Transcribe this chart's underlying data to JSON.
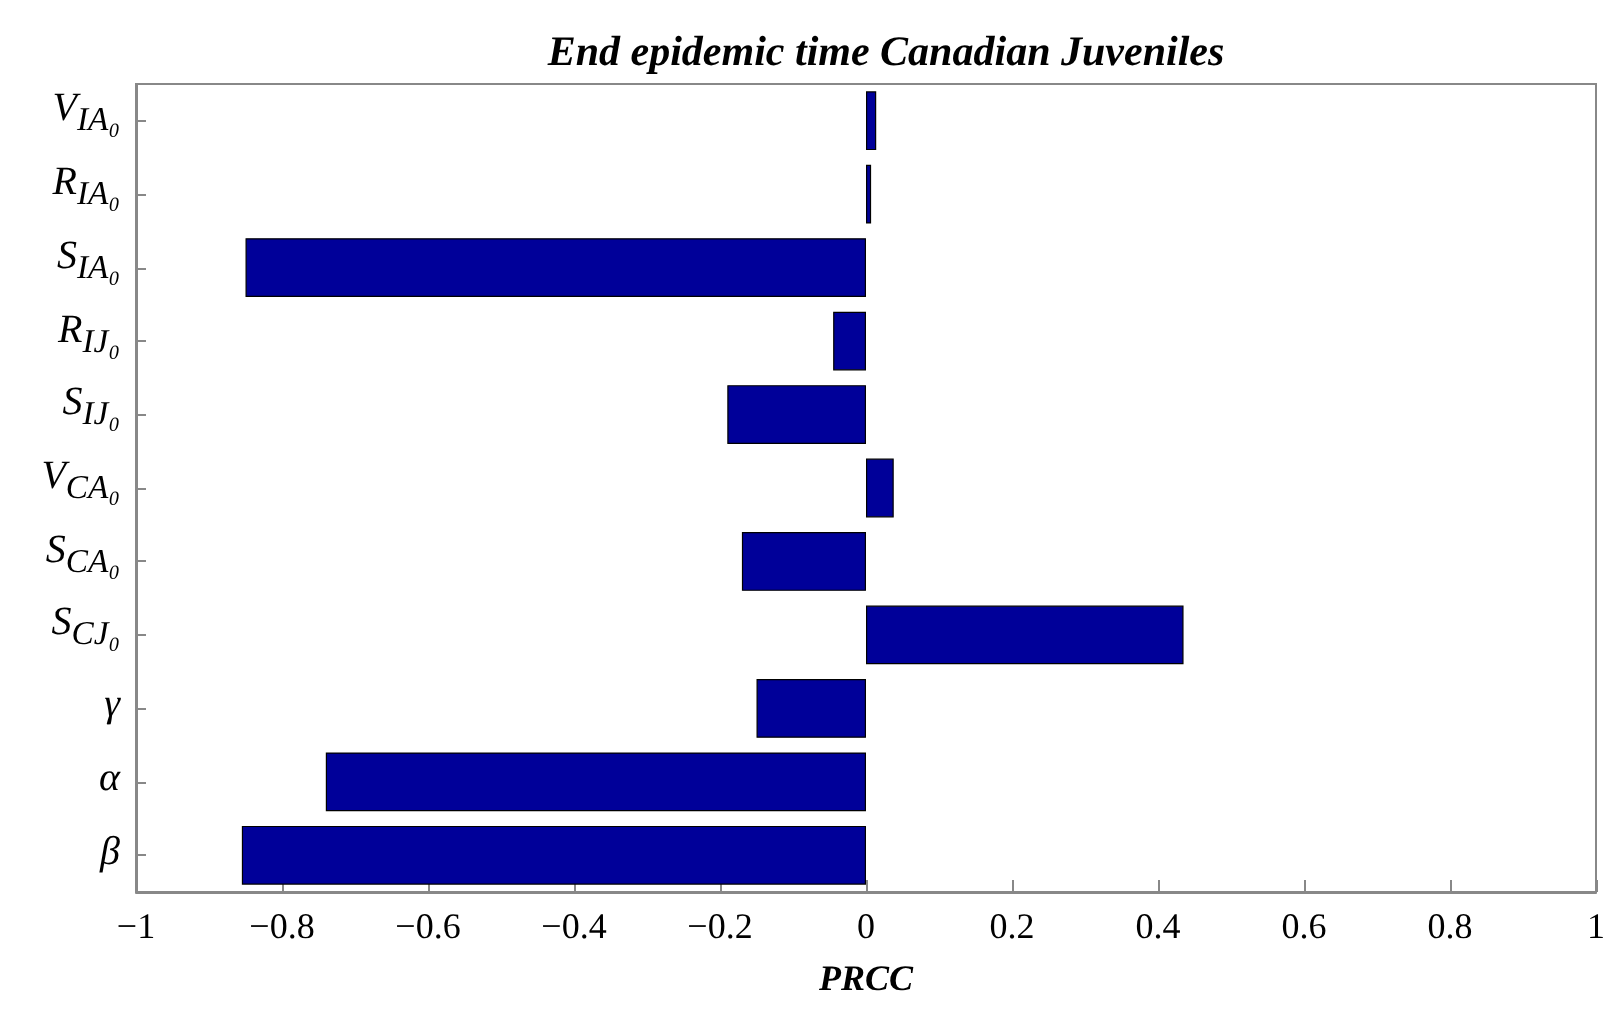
{
  "chart_data": {
    "type": "bar",
    "orientation": "horizontal",
    "title": "End epidemic time Canadian Juveniles",
    "xlabel": "PRCC",
    "categories": [
      "V$_{IA₀}$",
      "R$_{IA₀}$",
      "S$_{IA₀}$",
      "R$_{IJ₀}$",
      "S$_{IJ₀}$",
      "V$_{CA₀}$",
      "S$_{CA₀}$",
      "S$_{CJ₀}$",
      "γ",
      "α",
      "β"
    ],
    "values": [
      0.014,
      0.007,
      -0.85,
      -0.045,
      -0.19,
      0.038,
      -0.17,
      0.435,
      -0.15,
      -0.74,
      -0.855
    ],
    "color": "#000099",
    "xlim": [
      -1,
      1
    ],
    "xticks": [
      -1,
      -0.8,
      -0.6,
      -0.4,
      -0.2,
      0,
      0.2,
      0.4,
      0.6,
      0.8,
      1
    ],
    "grid": false
  }
}
